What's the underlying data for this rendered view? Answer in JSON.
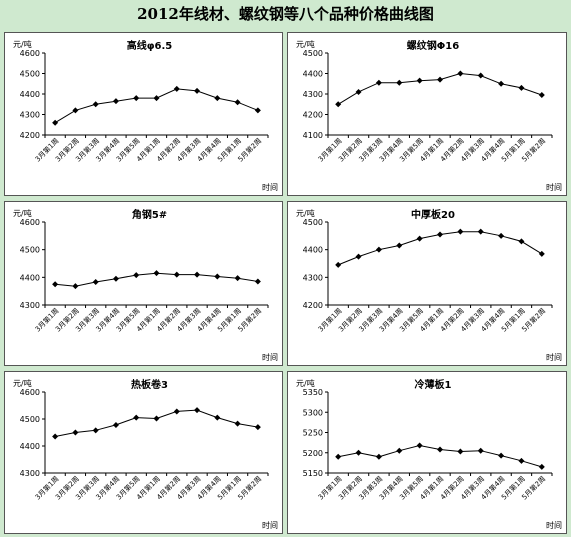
{
  "page_title": "2012年线材、螺纹钢等八个品种价格曲线图",
  "chart_data": [
    {
      "type": "line",
      "title": "高线φ6.5",
      "ylabel": "元/吨",
      "xlabel": "时间",
      "ylim": [
        4200,
        4600
      ],
      "yticks": [
        4200,
        4300,
        4400,
        4500,
        4600
      ],
      "categories": [
        "3月第1周",
        "3月第2周",
        "3月第3周",
        "3月第4周",
        "3月第5周",
        "4月第1周",
        "4月第2周",
        "4月第3周",
        "4月第4周",
        "5月第1周",
        "5月第2周"
      ],
      "values": [
        4260,
        4320,
        4350,
        4365,
        4380,
        4380,
        4425,
        4415,
        4380,
        4360,
        4320
      ]
    },
    {
      "type": "line",
      "title": "螺纹钢Φ16",
      "ylabel": "元/吨",
      "xlabel": "时间",
      "ylim": [
        4100,
        4500
      ],
      "yticks": [
        4100,
        4200,
        4300,
        4400,
        4500
      ],
      "categories": [
        "3月第1周",
        "3月第2周",
        "3月第3周",
        "3月第4周",
        "3月第5周",
        "4月第1周",
        "4月第2周",
        "4月第3周",
        "4月第4周",
        "5月第1周",
        "5月第2周"
      ],
      "values": [
        4250,
        4310,
        4355,
        4355,
        4365,
        4370,
        4400,
        4390,
        4350,
        4330,
        4295
      ]
    },
    {
      "type": "line",
      "title": "角钢5#",
      "ylabel": "元/吨",
      "xlabel": "时间",
      "ylim": [
        4300,
        4600
      ],
      "yticks": [
        4300,
        4400,
        4500,
        4600
      ],
      "categories": [
        "3月第1周",
        "3月第2周",
        "3月第3周",
        "3月第4周",
        "3月第5周",
        "4月第1周",
        "4月第2周",
        "4月第3周",
        "4月第4周",
        "5月第1周",
        "5月第2周"
      ],
      "values": [
        4375,
        4368,
        4383,
        4395,
        4408,
        4415,
        4410,
        4410,
        4403,
        4397,
        4385
      ]
    },
    {
      "type": "line",
      "title": "中厚板20",
      "ylabel": "元/吨",
      "xlabel": "时间",
      "ylim": [
        4200,
        4500
      ],
      "yticks": [
        4200,
        4300,
        4400,
        4500
      ],
      "categories": [
        "3月第1周",
        "3月第2周",
        "3月第3周",
        "3月第4周",
        "3月第5周",
        "4月第1周",
        "4月第2周",
        "4月第3周",
        "4月第4周",
        "5月第1周",
        "5月第2周"
      ],
      "values": [
        4345,
        4375,
        4400,
        4415,
        4440,
        4455,
        4465,
        4465,
        4450,
        4430,
        4385
      ]
    },
    {
      "type": "line",
      "title": "热板卷3",
      "ylabel": "元/吨",
      "xlabel": "时间",
      "ylim": [
        4300,
        4600
      ],
      "yticks": [
        4300,
        4400,
        4500,
        4600
      ],
      "categories": [
        "3月第1周",
        "3月第2周",
        "3月第3周",
        "3月第4周",
        "3月第5周",
        "4月第1周",
        "4月第2周",
        "4月第3周",
        "4月第4周",
        "5月第1周",
        "5月第2周"
      ],
      "values": [
        4435,
        4450,
        4458,
        4478,
        4505,
        4502,
        4528,
        4533,
        4505,
        4483,
        4470
      ]
    },
    {
      "type": "line",
      "title": "冷薄板1",
      "ylabel": "元/吨",
      "xlabel": "时间",
      "ylim": [
        5150,
        5350
      ],
      "yticks": [
        5150,
        5200,
        5250,
        5300,
        5350
      ],
      "categories": [
        "3月第1周",
        "3月第2周",
        "3月第3周",
        "3月第4周",
        "3月第5周",
        "4月第1周",
        "4月第2周",
        "4月第3周",
        "4月第4周",
        "5月第1周",
        "5月第2周"
      ],
      "values": [
        5190,
        5200,
        5190,
        5205,
        5218,
        5208,
        5203,
        5205,
        5193,
        5180,
        5165
      ]
    }
  ]
}
